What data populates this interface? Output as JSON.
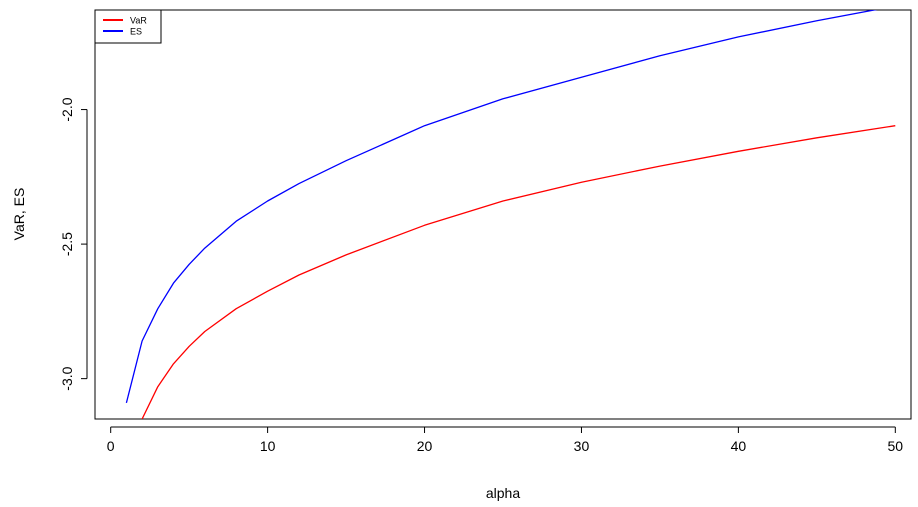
{
  "chart_data": {
    "type": "line",
    "title": "",
    "xlabel": "alpha",
    "ylabel": "VaR, ES",
    "xlim": [
      -1,
      51
    ],
    "ylim": [
      -3.15,
      -1.63
    ],
    "x_ticks": [
      0,
      10,
      20,
      30,
      40,
      50
    ],
    "x_tick_labels": [
      "0",
      "10",
      "20",
      "30",
      "40",
      "50"
    ],
    "y_ticks": [
      -3.0,
      -2.5,
      -2.0
    ],
    "y_tick_labels": [
      "-3.0",
      "-2.5",
      "-2.0"
    ],
    "grid": false,
    "legend_position": "top-left",
    "series": [
      {
        "name": "VaR",
        "color": "#ff0000",
        "x": [
          2,
          3,
          4,
          5,
          6,
          8,
          10,
          12,
          15,
          20,
          25,
          30,
          35,
          40,
          45,
          50
        ],
        "y": [
          -3.15,
          -3.03,
          -2.945,
          -2.88,
          -2.825,
          -2.74,
          -2.675,
          -2.615,
          -2.54,
          -2.43,
          -2.34,
          -2.27,
          -2.21,
          -2.155,
          -2.105,
          -2.06
        ]
      },
      {
        "name": "ES",
        "color": "#0000ff",
        "x": [
          1,
          2,
          3,
          4,
          5,
          6,
          8,
          10,
          12,
          15,
          20,
          25,
          30,
          35,
          40,
          45,
          50
        ],
        "y": [
          -3.09,
          -2.86,
          -2.74,
          -2.645,
          -2.575,
          -2.515,
          -2.415,
          -2.34,
          -2.275,
          -2.19,
          -2.06,
          -1.96,
          -1.88,
          -1.8,
          -1.73,
          -1.67,
          -1.615
        ]
      }
    ]
  }
}
